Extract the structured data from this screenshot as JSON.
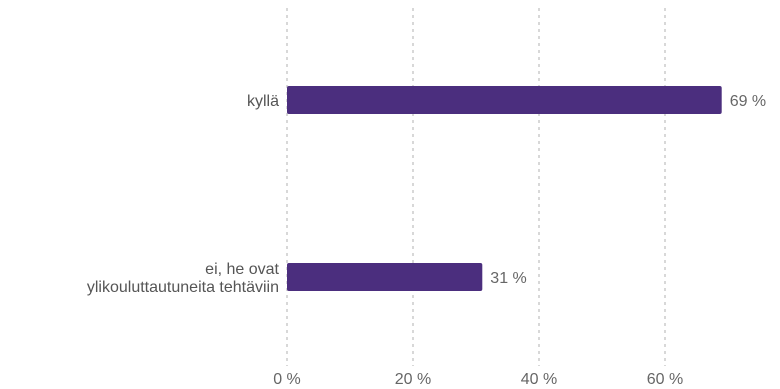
{
  "chart_data": {
    "type": "bar",
    "orientation": "horizontal",
    "categories": [
      "kyllä",
      "ei, he ovat ylikouluttautuneita tehtäviin"
    ],
    "category_lines": [
      [
        "kyllä"
      ],
      [
        "ei, he ovat",
        "ylikouluttautuneita tehtäviin"
      ]
    ],
    "values": [
      69,
      31
    ],
    "value_labels": [
      "69 %",
      "31 %"
    ],
    "xlim": [
      0,
      70
    ],
    "ticks": [
      0,
      20,
      40,
      60
    ],
    "tick_labels": [
      "0 %",
      "20 %",
      "40 %",
      "60 %"
    ],
    "grid": true,
    "legend": "none",
    "bar_color": "#4b2e7e"
  }
}
